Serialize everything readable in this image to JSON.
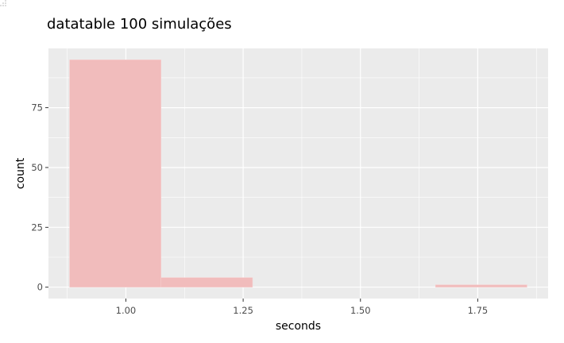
{
  "chart_data": {
    "type": "bar",
    "title": "datatable 100 simulações",
    "xlabel": "seconds",
    "ylabel": "count",
    "bins": [
      {
        "x_start": 0.88,
        "x_end": 1.075,
        "count": 95
      },
      {
        "x_start": 1.075,
        "x_end": 1.27,
        "count": 4
      },
      {
        "x_start": 1.27,
        "x_end": 1.465,
        "count": 0
      },
      {
        "x_start": 1.465,
        "x_end": 1.66,
        "count": 0
      },
      {
        "x_start": 1.66,
        "x_end": 1.855,
        "count": 1
      }
    ],
    "xlim": [
      0.835,
      1.9
    ],
    "ylim": [
      -4.75,
      99.75
    ],
    "x_ticks": [
      1.0,
      1.25,
      1.5,
      1.75
    ],
    "x_tick_labels": [
      "1.00",
      "1.25",
      "1.50",
      "1.75"
    ],
    "y_ticks": [
      0,
      25,
      50,
      75
    ],
    "y_tick_labels": [
      "0",
      "25",
      "50",
      "75"
    ],
    "grid": true,
    "panel_background": "#ebebeb",
    "grid_color": "#ffffff",
    "bar_fill": "#f1bcbc",
    "bar_stroke": "#f7cfcf",
    "legend": "none"
  }
}
